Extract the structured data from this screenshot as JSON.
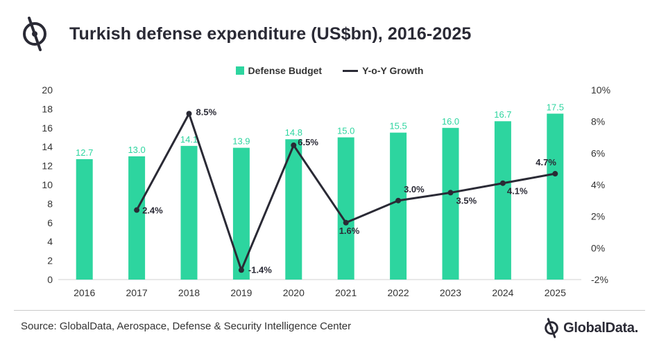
{
  "header": {
    "title": "Turkish defense expenditure (US$bn), 2016-2025",
    "logo_icon": "globaldata-logo-icon"
  },
  "legend": {
    "bar_label": "Defense Budget",
    "line_label": "Y-o-Y Growth"
  },
  "footer": {
    "source": "Source: GlobalData, Aerospace, Defense & Security Intelligence Center",
    "brand": "GlobalData."
  },
  "colors": {
    "bar": "#2dd59f",
    "bar_label": "#2dd59f",
    "line": "#2a2a35"
  },
  "chart_data": {
    "type": "bar",
    "title": "Turkish defense expenditure (US$bn), 2016-2025",
    "categories": [
      "2016",
      "2017",
      "2018",
      "2019",
      "2020",
      "2021",
      "2022",
      "2023",
      "2024",
      "2025"
    ],
    "series": [
      {
        "name": "Defense Budget",
        "type": "bar",
        "axis": "left",
        "values": [
          12.7,
          13.0,
          14.1,
          13.9,
          14.8,
          15.0,
          15.5,
          16.0,
          16.7,
          17.5
        ],
        "labels": [
          "12.7",
          "13.0",
          "14.1",
          "13.9",
          "14.8",
          "15.0",
          "15.5",
          "16.0",
          "16.7",
          "17.5"
        ]
      },
      {
        "name": "Y-o-Y Growth",
        "type": "line",
        "axis": "right",
        "values": [
          null,
          2.4,
          8.5,
          -1.4,
          6.5,
          1.6,
          3.0,
          3.5,
          4.1,
          4.7
        ],
        "labels": [
          null,
          "2.4%",
          "8.5%",
          "-1.4%",
          "6.5%",
          "1.6%",
          "3.0%",
          "3.5%",
          "4.1%",
          "4.7%"
        ]
      }
    ],
    "left_axis": {
      "min": 0,
      "max": 20,
      "ticks": [
        "0",
        "2",
        "4",
        "6",
        "8",
        "10",
        "12",
        "14",
        "16",
        "18",
        "20"
      ]
    },
    "right_axis": {
      "min": -2,
      "max": 10,
      "ticks": [
        "-2%",
        "0%",
        "2%",
        "4%",
        "6%",
        "8%",
        "10%"
      ]
    },
    "xlabel": "",
    "ylabel": "",
    "legend_position": "top",
    "grid": false
  }
}
